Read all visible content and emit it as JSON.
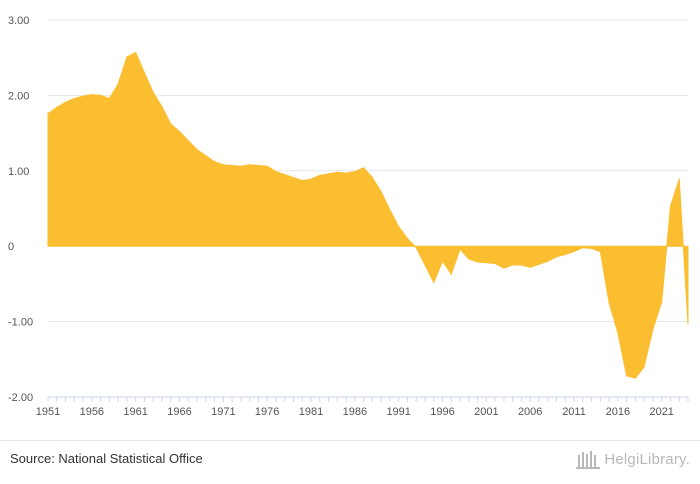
{
  "chart_data": {
    "type": "area",
    "title": "",
    "xlabel": "",
    "ylabel": "",
    "ylim": [
      -2.0,
      3.0
    ],
    "yticks": [
      3.0,
      2.0,
      1.0,
      0,
      -1.0,
      -2.0
    ],
    "ytick_labels": [
      "3.00",
      "2.00",
      "1.00",
      "0",
      "-1.00",
      "-2.00"
    ],
    "xticks": [
      1951,
      1956,
      1961,
      1966,
      1971,
      1976,
      1981,
      1986,
      1991,
      1996,
      2001,
      2006,
      2011,
      2016,
      2021
    ],
    "xtick_labels": [
      "1951",
      "1956",
      "1961",
      "1966",
      "1971",
      "1976",
      "1981",
      "1986",
      "1991",
      "1996",
      "2001",
      "2006",
      "2011",
      "2016",
      "2021"
    ],
    "fill_color": "#FBBE30",
    "grid": true,
    "x": [
      1951,
      1952,
      1953,
      1954,
      1955,
      1956,
      1957,
      1958,
      1959,
      1960,
      1961,
      1962,
      1963,
      1964,
      1965,
      1966,
      1967,
      1968,
      1969,
      1970,
      1971,
      1972,
      1973,
      1974,
      1975,
      1976,
      1977,
      1978,
      1979,
      1980,
      1981,
      1982,
      1983,
      1984,
      1985,
      1986,
      1987,
      1988,
      1989,
      1990,
      1991,
      1992,
      1993,
      1994,
      1995,
      1996,
      1997,
      1998,
      1999,
      2000,
      2001,
      2002,
      2003,
      2004,
      2005,
      2006,
      2007,
      2008,
      2009,
      2010,
      2011,
      2012,
      2013,
      2014,
      2015,
      2016,
      2017,
      2018,
      2019,
      2020,
      2021,
      2022,
      2023,
      2024
    ],
    "values": [
      1.76,
      1.84,
      1.91,
      1.96,
      1.99,
      2.01,
      2.0,
      1.96,
      2.15,
      2.51,
      2.57,
      2.3,
      2.04,
      1.85,
      1.62,
      1.52,
      1.4,
      1.28,
      1.2,
      1.12,
      1.08,
      1.07,
      1.06,
      1.08,
      1.07,
      1.06,
      0.99,
      0.95,
      0.91,
      0.87,
      0.89,
      0.94,
      0.96,
      0.98,
      0.97,
      0.99,
      1.04,
      0.91,
      0.72,
      0.48,
      0.26,
      0.1,
      -0.02,
      -0.25,
      -0.48,
      -0.2,
      -0.37,
      -0.04,
      -0.17,
      -0.21,
      -0.22,
      -0.23,
      -0.29,
      -0.25,
      -0.25,
      -0.28,
      -0.24,
      -0.2,
      -0.14,
      -0.11,
      -0.07,
      -0.02,
      -0.03,
      -0.07,
      -0.75,
      -1.15,
      -1.72,
      -1.75,
      -1.6,
      -1.1,
      -0.74,
      0.53,
      0.89,
      -1.03
    ]
  },
  "footer": {
    "source": "Source: National Statistical Office",
    "brand": "HelgiLibrary."
  },
  "colors": {
    "grid": "#e6e6e6",
    "axis": "#ccd6eb",
    "tick_text": "#555555",
    "brand": "#b8b8b8"
  }
}
